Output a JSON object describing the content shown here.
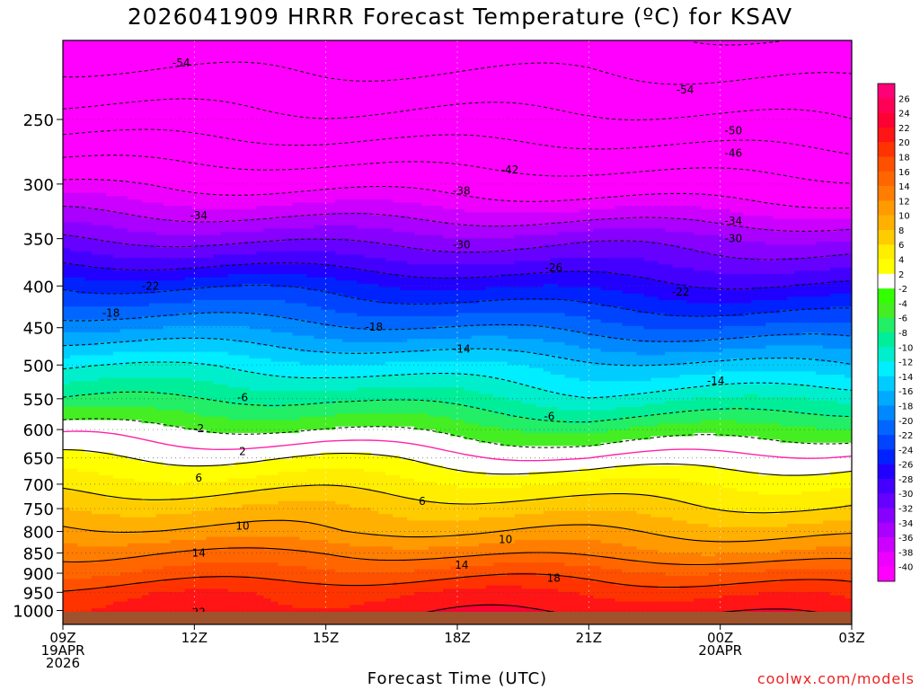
{
  "chart_data": {
    "type": "heatmap",
    "title": "2026041909 HRRR Forecast Temperature (ºC) for KSAV",
    "xlabel": "Forecast Time (UTC)",
    "ylabel": "",
    "x_hours": [
      0,
      18
    ],
    "x_ticks": [
      {
        "hour": 0,
        "lines": [
          "09Z",
          "19APR",
          "2026"
        ]
      },
      {
        "hour": 3,
        "lines": [
          "12Z"
        ]
      },
      {
        "hour": 6,
        "lines": [
          "15Z"
        ]
      },
      {
        "hour": 9,
        "lines": [
          "18Z"
        ]
      },
      {
        "hour": 12,
        "lines": [
          "21Z"
        ]
      },
      {
        "hour": 15,
        "lines": [
          "00Z",
          "20APR"
        ]
      },
      {
        "hour": 18,
        "lines": [
          "03Z"
        ]
      }
    ],
    "y_axis": "pressure_hPa_log_inverted",
    "y_range_hPa": [
      1040,
      200
    ],
    "y_ticks": [
      "250",
      "300",
      "350",
      "400",
      "450",
      "500",
      "550",
      "600",
      "650",
      "700",
      "750",
      "800",
      "850",
      "900",
      "950",
      "1000"
    ],
    "temperature_profile": {
      "pressure_hPa": [
        1000,
        950,
        900,
        850,
        800,
        750,
        700,
        650,
        600,
        550,
        500,
        450,
        400,
        350,
        300,
        250,
        200
      ],
      "series": [
        {
          "hour": 0,
          "temp_C": [
            20,
            19,
            16,
            14,
            11,
            8,
            5,
            2,
            -1,
            -6,
            -10,
            -16,
            -22,
            -30,
            -38,
            -48,
            -57
          ]
        },
        {
          "hour": 6,
          "temp_C": [
            21,
            20,
            17,
            14,
            10,
            8,
            5,
            2,
            -2,
            -6,
            -11,
            -17,
            -23,
            -31,
            -39,
            -49,
            -57
          ]
        },
        {
          "hour": 12,
          "temp_C": [
            22,
            20,
            17,
            13,
            10,
            7,
            4,
            0,
            -4,
            -9,
            -13,
            -19,
            -25,
            -31,
            -40,
            -49,
            -57
          ]
        },
        {
          "hour": 18,
          "temp_C": [
            21,
            19,
            16,
            12,
            9,
            6,
            4,
            1,
            -3,
            -8,
            -14,
            -20,
            -26,
            -32,
            -41,
            -50,
            -58
          ]
        }
      ]
    },
    "contour_labels": [
      {
        "text": "-54",
        "hour": 2.7,
        "p": 213
      },
      {
        "text": "-54",
        "hour": 14.2,
        "p": 230
      },
      {
        "text": "-50",
        "hour": 15.3,
        "p": 258
      },
      {
        "text": "-46",
        "hour": 15.3,
        "p": 275
      },
      {
        "text": "-42",
        "hour": 10.2,
        "p": 288
      },
      {
        "text": "-38",
        "hour": 9.1,
        "p": 306
      },
      {
        "text": "-34",
        "hour": 3.1,
        "p": 328
      },
      {
        "text": "-34",
        "hour": 15.3,
        "p": 333
      },
      {
        "text": "-30",
        "hour": 9.1,
        "p": 356
      },
      {
        "text": "-30",
        "hour": 15.3,
        "p": 350
      },
      {
        "text": "-26",
        "hour": 11.2,
        "p": 380
      },
      {
        "text": "-22",
        "hour": 2.0,
        "p": 400
      },
      {
        "text": "-22",
        "hour": 14.1,
        "p": 407
      },
      {
        "text": "-18",
        "hour": 1.1,
        "p": 432
      },
      {
        "text": "-18",
        "hour": 7.1,
        "p": 449
      },
      {
        "text": "-14",
        "hour": 9.1,
        "p": 478
      },
      {
        "text": "-14",
        "hour": 14.9,
        "p": 523
      },
      {
        "text": "-6",
        "hour": 4.1,
        "p": 548
      },
      {
        "text": "-6",
        "hour": 11.1,
        "p": 578
      },
      {
        "text": "-2",
        "hour": 3.1,
        "p": 598
      },
      {
        "text": "2",
        "hour": 4.1,
        "p": 638
      },
      {
        "text": "6",
        "hour": 3.1,
        "p": 688
      },
      {
        "text": "6",
        "hour": 8.2,
        "p": 735
      },
      {
        "text": "10",
        "hour": 4.1,
        "p": 788
      },
      {
        "text": "10",
        "hour": 10.1,
        "p": 818
      },
      {
        "text": "14",
        "hour": 3.1,
        "p": 850
      },
      {
        "text": "14",
        "hour": 9.1,
        "p": 880
      },
      {
        "text": "18",
        "hour": 11.2,
        "p": 913
      },
      {
        "text": "22",
        "hour": 3.1,
        "p": 1005
      }
    ],
    "colorbar": {
      "labels": [
        "26",
        "24",
        "22",
        "20",
        "18",
        "16",
        "14",
        "12",
        "10",
        "8",
        "6",
        "4",
        "2",
        "-2",
        "-4",
        "-6",
        "-8",
        "-10",
        "-12",
        "-14",
        "-16",
        "-18",
        "-20",
        "-22",
        "-24",
        "-26",
        "-28",
        "-30",
        "-32",
        "-34",
        "-36",
        "-38",
        "-40"
      ],
      "colors": [
        "#ff0077",
        "#ff0055",
        "#ff0033",
        "#ff1515",
        "#ff3300",
        "#ff5000",
        "#ff6600",
        "#ff7d00",
        "#ff9a00",
        "#ffb000",
        "#ffcc00",
        "#ffee00",
        "#ffff00",
        "#ffffff",
        "#33ff00",
        "#44ee22",
        "#22ee66",
        "#00ee99",
        "#00eecc",
        "#00eeff",
        "#00ccff",
        "#00aaff",
        "#0088ff",
        "#0066ff",
        "#0044ff",
        "#0022ff",
        "#2200ff",
        "#4400ff",
        "#6600ff",
        "#8800ff",
        "#aa00ff",
        "#cc00ff",
        "#ee00ff",
        "#ff00ff"
      ]
    },
    "ground_color": "#a0522d",
    "freezing_line_color": "#ff22aa"
  },
  "footer": {
    "credit": "coolwx.com/models"
  }
}
